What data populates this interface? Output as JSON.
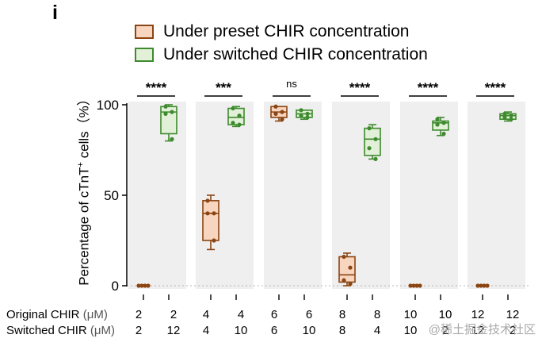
{
  "panel_letter": "i",
  "watermark": "@稀土掘金技术社区",
  "chart_data": {
    "type": "box",
    "ylabel_main": "Percentage of cTnT",
    "ylabel_sup": "+",
    "ylabel_rest": " cells（%）",
    "ylim": [
      0,
      100
    ],
    "yticks": [
      0,
      50,
      100
    ],
    "reference_line": 0,
    "row_labels": [
      {
        "text": "Original CHIR",
        "unit": "(μM)"
      },
      {
        "text": "Switched CHIR",
        "unit": "(μM)"
      }
    ],
    "legend": [
      {
        "name": "Under preset CHIR concentration",
        "stroke": "#8B4513",
        "fill": "#F8D5BF"
      },
      {
        "name": "Under switched CHIR concentration",
        "stroke": "#3E8A2E",
        "fill": "#E2F0D8"
      }
    ],
    "groups": [
      {
        "significance": "****",
        "preset": {
          "original": "2",
          "switched": "2",
          "min": 0,
          "q1": 0,
          "median": 0,
          "q3": 0,
          "max": 0,
          "points": [
            0,
            0,
            0,
            0
          ]
        },
        "switched": {
          "original": "2",
          "switched": "12",
          "min": 80,
          "q1": 84,
          "median": 96,
          "q3": 99,
          "max": 100,
          "points": [
            99,
            96,
            95,
            81
          ]
        }
      },
      {
        "significance": "***",
        "preset": {
          "original": "4",
          "switched": "4",
          "min": 20,
          "q1": 25,
          "median": 40,
          "q3": 47,
          "max": 50,
          "points": [
            47,
            40,
            40,
            25
          ]
        },
        "switched": {
          "original": "4",
          "switched": "10",
          "min": 88,
          "q1": 89,
          "median": 93,
          "q3": 98,
          "max": 99,
          "points": [
            98,
            94,
            90,
            89
          ]
        }
      },
      {
        "significance": "ns",
        "preset": {
          "original": "6",
          "switched": "6",
          "min": 91,
          "q1": 93,
          "median": 96,
          "q3": 99,
          "max": 99,
          "points": [
            99,
            96,
            95,
            92
          ]
        },
        "switched": {
          "original": "6",
          "switched": "10",
          "min": 92,
          "q1": 93,
          "median": 95,
          "q3": 97,
          "max": 97,
          "points": [
            97,
            95,
            94,
            93
          ]
        }
      },
      {
        "significance": "****",
        "preset": {
          "original": "8",
          "switched": "8",
          "min": 0,
          "q1": 2,
          "median": 6,
          "q3": 16,
          "max": 18,
          "points": [
            16,
            10,
            3,
            1
          ]
        },
        "switched": {
          "original": "8",
          "switched": "4",
          "min": 70,
          "q1": 72,
          "median": 81,
          "q3": 87,
          "max": 89,
          "points": [
            87,
            81,
            76,
            70
          ]
        }
      },
      {
        "significance": "****",
        "preset": {
          "original": "10",
          "switched": "10",
          "min": 0,
          "q1": 0,
          "median": 0,
          "q3": 0,
          "max": 0,
          "points": [
            0,
            0,
            0,
            0
          ]
        },
        "switched": {
          "original": "10",
          "switched": "2",
          "min": 83,
          "q1": 86,
          "median": 90,
          "q3": 91,
          "max": 93,
          "points": [
            92,
            90,
            89,
            84
          ]
        }
      },
      {
        "significance": "****",
        "preset": {
          "original": "12",
          "switched": "12",
          "min": 0,
          "q1": 0,
          "median": 0,
          "q3": 0,
          "max": 0,
          "points": [
            0,
            0,
            0,
            0
          ]
        },
        "switched": {
          "original": "12",
          "switched": "2",
          "min": 91,
          "q1": 92,
          "median": 94,
          "q3": 95,
          "max": 96,
          "points": [
            95,
            94,
            93,
            92
          ]
        }
      }
    ]
  }
}
